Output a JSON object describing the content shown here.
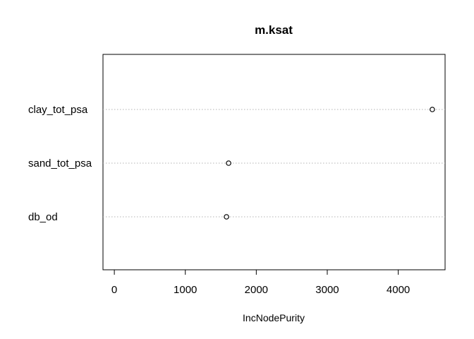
{
  "chart_data": {
    "type": "scatter",
    "title": "m.ksat",
    "xlabel": "IncNodePurity",
    "ylabel": "",
    "categories": [
      "clay_tot_psa",
      "sand_tot_psa",
      "db_od"
    ],
    "values": [
      4480,
      1610,
      1580
    ],
    "xlim": [
      -160,
      4660
    ],
    "xticks": [
      0,
      1000,
      2000,
      3000,
      4000
    ],
    "grid": "dotted horizontal per category",
    "legend": "none",
    "colors": {
      "point_stroke": "#000000",
      "grid": "#b3b3b3",
      "frame": "#000000"
    }
  }
}
